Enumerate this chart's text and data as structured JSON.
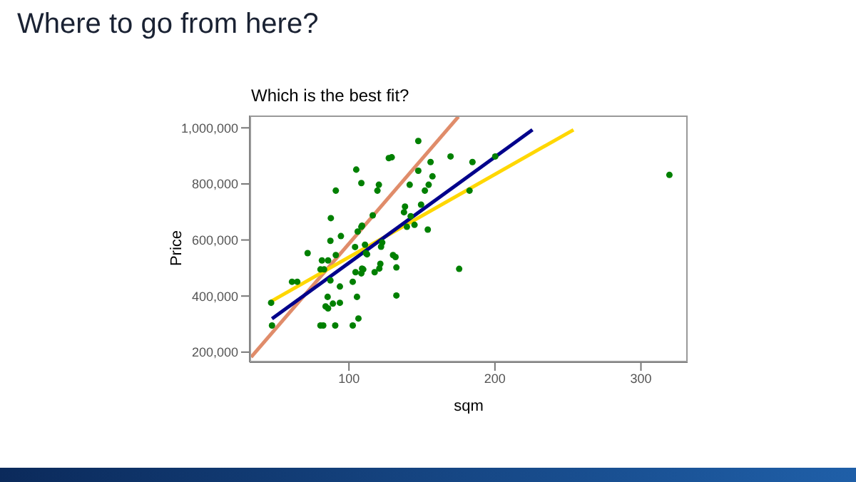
{
  "chart_data": {
    "type": "scatter",
    "title": "Where to go from here?",
    "subtitle": "Which is the best fit?",
    "xlabel": "sqm",
    "ylabel": "Price",
    "line_style": "solid",
    "xlim": [
      32,
      332
    ],
    "xticks": [
      100,
      200,
      300
    ],
    "ylim": [
      164000,
      1044000
    ],
    "yticks": [
      {
        "value": 200000,
        "label": "200,000"
      },
      {
        "value": 400000,
        "label": "400,000"
      },
      {
        "value": 600000,
        "label": "600,000"
      },
      {
        "value": 800000,
        "label": "800,000"
      },
      {
        "value": 1000000,
        "label": "1,000,000"
      }
    ],
    "series": [
      {
        "marker": "circle",
        "color": "#008000",
        "x": [
          46.7,
          47.3,
          61,
          64.6,
          71.7,
          81.5,
          85.7,
          80.5,
          83,
          87.3,
          87.6,
          91,
          94.5,
          91,
          87.3,
          85.4,
          84,
          85.7,
          89,
          93.8,
          80.5,
          82.4,
          90.6,
          102.6,
          106.5,
          105.5,
          102.6,
          93.8,
          104.5,
          108.5,
          109.8,
          104.2,
          106,
          108.5,
          105,
          108.5,
          111,
          112.4,
          109,
          109,
          111.7,
          117.6,
          120.8,
          121.5,
          122,
          122.8,
          116.3,
          119.5,
          120.5,
          127.3,
          129.3,
          130.2,
          131.9,
          132.5,
          132.5,
          138.4,
          137.7,
          142.3,
          139.7,
          144.9,
          141.6,
          147.5,
          147.5,
          149.4,
          152,
          154.6,
          157.2,
          155.9,
          154,
          169.6,
          175.5,
          182.6,
          184.6,
          200.2,
          319.5
        ],
        "values": [
          376000,
          295000,
          451000,
          451000,
          553000,
          527000,
          527000,
          495000,
          495000,
          597000,
          678000,
          776000,
          614000,
          546000,
          456000,
          397000,
          363000,
          356000,
          373000,
          376000,
          295000,
          295000,
          295000,
          295000,
          320000,
          397000,
          451000,
          434000,
          485000,
          481000,
          495000,
          575000,
          630000,
          647000,
          851000,
          803000,
          583000,
          549000,
          651000,
          498000,
          553000,
          485000,
          498000,
          515000,
          576000,
          591000,
          688000,
          776000,
          797000,
          892000,
          895000,
          546000,
          539000,
          502000,
          402000,
          719000,
          699000,
          685000,
          647000,
          654000,
          797000,
          953000,
          847000,
          726000,
          776000,
          797000,
          827000,
          878000,
          637000,
          898000,
          497000,
          776000,
          878000,
          898000,
          832000
        ]
      },
      {
        "type": "line",
        "color": "#e08c6a",
        "x": [
          33,
          175
        ],
        "values": [
          182000,
          1040000
        ]
      },
      {
        "type": "line",
        "color": "#ffd700",
        "x": [
          46.3,
          253.8
        ],
        "values": [
          380000,
          993000
        ]
      },
      {
        "type": "line",
        "color": "#00008b",
        "x": [
          47.3,
          225.7
        ],
        "values": [
          319000,
          993000
        ]
      }
    ]
  }
}
